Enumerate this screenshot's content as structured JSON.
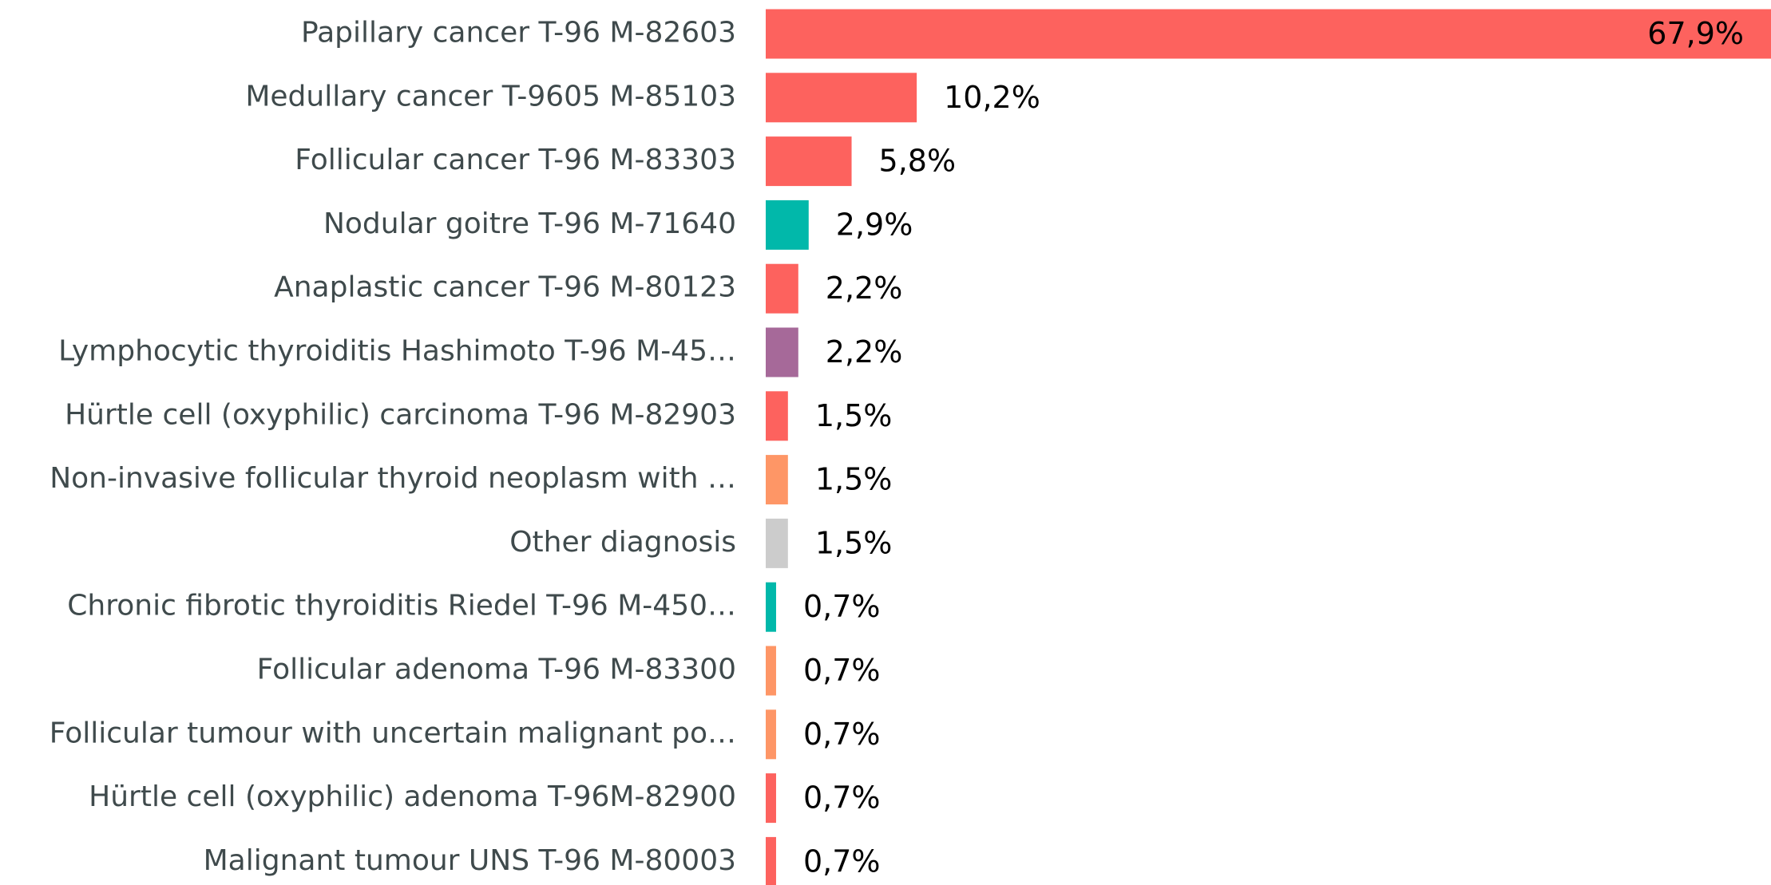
{
  "chart_data": {
    "type": "bar",
    "orientation": "horizontal",
    "categories": [
      "Papillary cancer T-96 M-82603",
      "Medullary cancer T-9605 M-85103",
      "Follicular cancer T-96 M-83303",
      "Nodular goitre T-96 M-71640",
      "Anaplastic cancer T-96 M-80123",
      "Lymphocytic thyroiditis Hashimoto T-96 M-45…",
      "Hürtle cell (oxyphilic) carcinoma T-96 M-82903",
      "Non-invasive follicular thyroid neoplasm with …",
      "Other diagnosis",
      "Chronic fibrotic thyroiditis Riedel T-96 M-450…",
      "Follicular adenoma T-96 M-83300",
      "Follicular tumour with uncertain malignant po…",
      "Hürtle cell (oxyphilic) adenoma T-96M-82900",
      "Malignant tumour UNS T-96 M-80003"
    ],
    "values": [
      67.9,
      10.2,
      5.8,
      2.9,
      2.2,
      2.2,
      1.5,
      1.5,
      1.5,
      0.7,
      0.7,
      0.7,
      0.7,
      0.7
    ],
    "value_labels": [
      "67,9%",
      "10,2%",
      "5,8%",
      "2,9%",
      "2,2%",
      "2,2%",
      "1,5%",
      "1,5%",
      "1,5%",
      "0,7%",
      "0,7%",
      "0,7%",
      "0,7%",
      "0,7%"
    ],
    "colors": [
      "#fd625e",
      "#fd625e",
      "#fd625e",
      "#01b8aa",
      "#fd625e",
      "#a66999",
      "#fd625e",
      "#fe9666",
      "#cccccc",
      "#01b8aa",
      "#fe9666",
      "#fe9666",
      "#fd625e",
      "#fd625e"
    ]
  }
}
